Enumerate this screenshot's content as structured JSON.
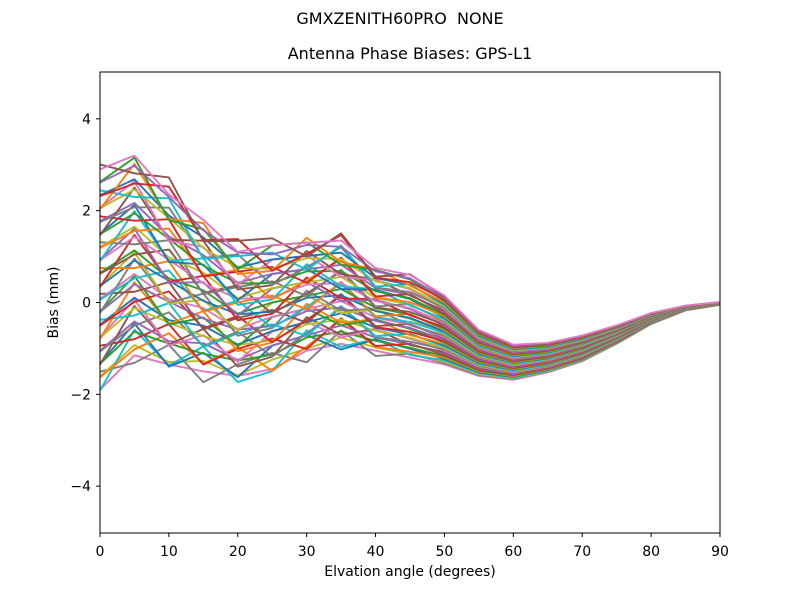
{
  "figure": {
    "suptitle": "GMXZENITH60PRO  NONE",
    "background_color": "#ffffff",
    "text_color": "#000000"
  },
  "chart_data": {
    "type": "line",
    "suptitle": "GMXZENITH60PRO  NONE",
    "title": "Antenna Phase Biases: GPS-L1",
    "xlabel": "Elvation angle (degrees)",
    "ylabel": "Bias (mm)",
    "xlim": [
      0,
      90
    ],
    "ylim": [
      -5.02,
      5.02
    ],
    "xticks": [
      0,
      10,
      20,
      30,
      40,
      50,
      60,
      70,
      80,
      90
    ],
    "xtick_labels": [
      "0",
      "10",
      "20",
      "30",
      "40",
      "50",
      "60",
      "70",
      "80",
      "90"
    ],
    "yticks": [
      -4,
      -2,
      0,
      2,
      4
    ],
    "ytick_labels": [
      "−4",
      "−2",
      "0",
      "2",
      "4"
    ],
    "grid": false,
    "legend_position": "none",
    "n_series": 51,
    "x": [
      0,
      5,
      10,
      15,
      20,
      25,
      30,
      35,
      40,
      45,
      50,
      55,
      60,
      65,
      70,
      75,
      80,
      85,
      90
    ],
    "envelope_top": [
      2.8,
      3.2,
      2.6,
      1.8,
      1.35,
      1.35,
      1.55,
      1.45,
      0.9,
      0.7,
      0.25,
      -0.55,
      -0.92,
      -0.88,
      -0.72,
      -0.48,
      -0.22,
      -0.06,
      0.02
    ],
    "envelope_bottom": [
      -1.9,
      -1.15,
      -1.5,
      -1.6,
      -1.7,
      -1.65,
      -1.3,
      -1.1,
      -1.2,
      -1.3,
      -1.45,
      -1.6,
      -1.7,
      -1.52,
      -1.28,
      -0.92,
      -0.5,
      -0.18,
      -0.05
    ],
    "mean_curve": [
      0.45,
      1.0,
      0.55,
      0.1,
      -0.2,
      -0.15,
      0.15,
      0.2,
      -0.15,
      -0.3,
      -0.6,
      -1.1,
      -1.3,
      -1.2,
      -1.0,
      -0.7,
      -0.35,
      -0.12,
      -0.02
    ],
    "half_spread": [
      2.35,
      2.15,
      1.9,
      1.6,
      1.4,
      1.3,
      1.2,
      1.1,
      0.9,
      0.9,
      0.75,
      0.5,
      0.38,
      0.32,
      0.28,
      0.2,
      0.12,
      0.05,
      0.03
    ],
    "series_model": "values[j] = mean_curve[j] + amp * half_spread[j] + wiggle_patterns[wiggle][j]",
    "wiggle_patterns": [
      [
        0,
        0,
        0,
        0,
        0,
        0,
        0,
        0,
        0,
        0,
        0,
        0,
        0,
        0,
        0,
        0,
        0,
        0,
        0
      ],
      [
        0.3,
        -0.25,
        0.35,
        -0.3,
        0.2,
        0.3,
        -0.3,
        0.25,
        -0.15,
        0.05,
        0,
        0,
        0,
        0,
        0,
        0,
        0,
        0,
        0
      ],
      [
        0.1,
        0.05,
        -0.1,
        0.1,
        -0.1,
        0.1,
        -0.05,
        0.05,
        0,
        0,
        0,
        0,
        0,
        0,
        0,
        0,
        0,
        0,
        0
      ],
      [
        -0.3,
        0.3,
        -0.25,
        0.35,
        -0.3,
        -0.2,
        0.3,
        -0.2,
        0.15,
        -0.05,
        0,
        0,
        0,
        0,
        0,
        0,
        0,
        0,
        0
      ],
      [
        0.2,
        0.35,
        -0.35,
        0.15,
        -0.25,
        0.3,
        0.15,
        -0.3,
        0.1,
        0.05,
        0,
        0,
        0,
        0,
        0,
        0,
        0,
        0,
        0
      ],
      [
        -0.2,
        -0.3,
        0.3,
        -0.15,
        0.35,
        -0.3,
        -0.15,
        0.3,
        -0.1,
        -0.05,
        0,
        0,
        0,
        0,
        0,
        0,
        0,
        0,
        0
      ]
    ],
    "palette": [
      "#1f77b4",
      "#ff7f0e",
      "#2ca02c",
      "#d62728",
      "#9467bd",
      "#8c564b",
      "#e377c2",
      "#7f7f7f",
      "#bcbd22",
      "#17becf"
    ],
    "series": [
      {
        "color": "#e377c2",
        "amp": -1.0,
        "wiggle": 0
      },
      {
        "color": "#7f7f7f",
        "amp": -0.96,
        "wiggle": 1
      },
      {
        "color": "#bcbd22",
        "amp": -0.92,
        "wiggle": 2
      },
      {
        "color": "#17becf",
        "amp": -0.88,
        "wiggle": 3
      },
      {
        "color": "#1f77b4",
        "amp": -0.84,
        "wiggle": 4
      },
      {
        "color": "#ff7f0e",
        "amp": -0.8,
        "wiggle": 5
      },
      {
        "color": "#2ca02c",
        "amp": -0.76,
        "wiggle": 0
      },
      {
        "color": "#d62728",
        "amp": -0.72,
        "wiggle": 1
      },
      {
        "color": "#9467bd",
        "amp": -0.68,
        "wiggle": 2
      },
      {
        "color": "#8c564b",
        "amp": -0.64,
        "wiggle": 3
      },
      {
        "color": "#e377c2",
        "amp": -0.6,
        "wiggle": 4
      },
      {
        "color": "#7f7f7f",
        "amp": -0.56,
        "wiggle": 5
      },
      {
        "color": "#bcbd22",
        "amp": -0.52,
        "wiggle": 0
      },
      {
        "color": "#17becf",
        "amp": -0.48,
        "wiggle": 1
      },
      {
        "color": "#1f77b4",
        "amp": -0.44,
        "wiggle": 2
      },
      {
        "color": "#ff7f0e",
        "amp": -0.4,
        "wiggle": 3
      },
      {
        "color": "#2ca02c",
        "amp": -0.36,
        "wiggle": 4
      },
      {
        "color": "#d62728",
        "amp": -0.32,
        "wiggle": 5
      },
      {
        "color": "#9467bd",
        "amp": -0.28,
        "wiggle": 0
      },
      {
        "color": "#8c564b",
        "amp": -0.24,
        "wiggle": 1
      },
      {
        "color": "#e377c2",
        "amp": -0.2,
        "wiggle": 2
      },
      {
        "color": "#7f7f7f",
        "amp": -0.16,
        "wiggle": 3
      },
      {
        "color": "#bcbd22",
        "amp": -0.12,
        "wiggle": 4
      },
      {
        "color": "#17becf",
        "amp": -0.08,
        "wiggle": 5
      },
      {
        "color": "#1f77b4",
        "amp": -0.04,
        "wiggle": 0
      },
      {
        "color": "#ff7f0e",
        "amp": 0.0,
        "wiggle": 1
      },
      {
        "color": "#2ca02c",
        "amp": 0.04,
        "wiggle": 2
      },
      {
        "color": "#d62728",
        "amp": 0.08,
        "wiggle": 3
      },
      {
        "color": "#9467bd",
        "amp": 0.12,
        "wiggle": 4
      },
      {
        "color": "#8c564b",
        "amp": 0.16,
        "wiggle": 5
      },
      {
        "color": "#e377c2",
        "amp": 0.2,
        "wiggle": 0
      },
      {
        "color": "#7f7f7f",
        "amp": 0.24,
        "wiggle": 1
      },
      {
        "color": "#bcbd22",
        "amp": 0.28,
        "wiggle": 2
      },
      {
        "color": "#17becf",
        "amp": 0.32,
        "wiggle": 3
      },
      {
        "color": "#1f77b4",
        "amp": 0.36,
        "wiggle": 4
      },
      {
        "color": "#ff7f0e",
        "amp": 0.4,
        "wiggle": 5
      },
      {
        "color": "#2ca02c",
        "amp": 0.44,
        "wiggle": 0
      },
      {
        "color": "#d62728",
        "amp": 0.48,
        "wiggle": 1
      },
      {
        "color": "#9467bd",
        "amp": 0.52,
        "wiggle": 2
      },
      {
        "color": "#8c564b",
        "amp": 0.56,
        "wiggle": 3
      },
      {
        "color": "#e377c2",
        "amp": 0.6,
        "wiggle": 4
      },
      {
        "color": "#7f7f7f",
        "amp": 0.64,
        "wiggle": 5
      },
      {
        "color": "#bcbd22",
        "amp": 0.68,
        "wiggle": 0
      },
      {
        "color": "#17becf",
        "amp": 0.72,
        "wiggle": 1
      },
      {
        "color": "#1f77b4",
        "amp": 0.76,
        "wiggle": 2
      },
      {
        "color": "#ff7f0e",
        "amp": 0.8,
        "wiggle": 3
      },
      {
        "color": "#2ca02c",
        "amp": 0.84,
        "wiggle": 4
      },
      {
        "color": "#d62728",
        "amp": 0.88,
        "wiggle": 5
      },
      {
        "color": "#9467bd",
        "amp": 0.92,
        "wiggle": 0
      },
      {
        "color": "#8c564b",
        "amp": 0.96,
        "wiggle": 1
      },
      {
        "color": "#e377c2",
        "amp": 1.0,
        "wiggle": 2
      }
    ]
  }
}
